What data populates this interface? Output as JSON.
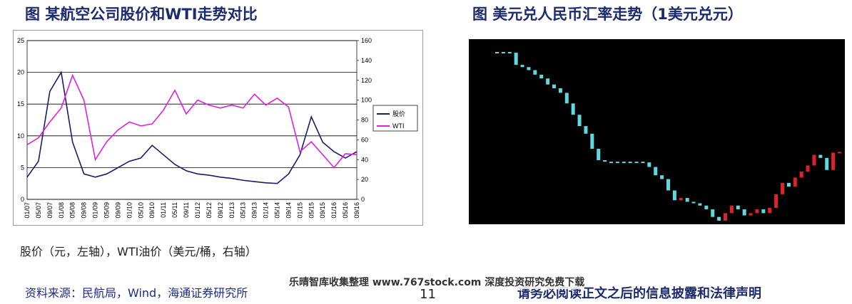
{
  "chart_data": [
    {
      "type": "line",
      "title": "图  某航空公司股价和WTI走势对比",
      "categories": [
        "01/07",
        "05/07",
        "09/07",
        "01/08",
        "05/08",
        "09/08",
        "01/09",
        "05/09",
        "09/09",
        "01/10",
        "05/10",
        "09/10",
        "01/11",
        "05/11",
        "09/11",
        "01/12",
        "05/12",
        "09/12",
        "01/13",
        "05/13",
        "09/13",
        "01/14",
        "05/14",
        "09/14",
        "01/15",
        "05/15",
        "09/15",
        "01/16",
        "05/16",
        "09/16"
      ],
      "series": [
        {
          "name": "股价",
          "color": "#1a1a6e",
          "values": [
            3.5,
            6,
            17,
            20,
            9,
            4,
            3.5,
            4,
            5,
            6,
            6.5,
            8.5,
            7,
            5.5,
            4.5,
            4,
            3.8,
            3.5,
            3.3,
            3,
            2.8,
            2.6,
            2.5,
            4,
            7,
            13,
            9,
            7.5,
            6.5,
            7.5
          ]
        },
        {
          "name": "WTI",
          "color": "#e020e0",
          "axis": "y2",
          "values": [
            55,
            62,
            78,
            92,
            125,
            100,
            40,
            58,
            70,
            78,
            74,
            76,
            90,
            110,
            86,
            100,
            95,
            92,
            95,
            92,
            106,
            95,
            102,
            93,
            48,
            58,
            45,
            32,
            46,
            45
          ]
        }
      ],
      "ylim": [
        0,
        25
      ],
      "yticks": [
        0,
        5,
        10,
        15,
        20,
        25
      ],
      "y2lim": [
        0,
        160
      ],
      "y2ticks": [
        0,
        20,
        40,
        60,
        80,
        100,
        120,
        140,
        160
      ],
      "grid": true,
      "legend": "right"
    },
    {
      "type": "line",
      "title": "图  美元兑人民币汇率走势（1美元兑元）",
      "values": [
        8.28,
        8.28,
        8.27,
        8.11,
        8.08,
        8.04,
        7.98,
        7.93,
        7.85,
        7.8,
        7.74,
        7.6,
        7.45,
        7.3,
        7.2,
        7.0,
        6.85,
        6.83,
        6.83,
        6.83,
        6.83,
        6.83,
        6.83,
        6.82,
        6.76,
        6.65,
        6.6,
        6.45,
        6.32,
        6.35,
        6.3,
        6.28,
        6.25,
        6.2,
        6.1,
        6.05,
        6.15,
        6.25,
        6.2,
        6.12,
        6.15,
        6.2,
        6.15,
        6.22,
        6.4,
        6.55,
        6.5,
        6.62,
        6.7,
        6.78,
        6.92,
        6.88,
        6.72,
        6.95,
        6.96
      ],
      "up_color": "#e0202a",
      "down_color": "#5fd8e0",
      "background": "#000000"
    }
  ],
  "note": "股价（元，左轴），WTI油价（美元/桶，右轴）",
  "source": "资料来源：民航局，Wind，海通证券研究所",
  "watermark": "乐晴智库收集整理 www.767stock.com 深度投资研究免费下载",
  "page_number": "11",
  "footer": "请务必阅读正文之后的信息披露和法律声明"
}
